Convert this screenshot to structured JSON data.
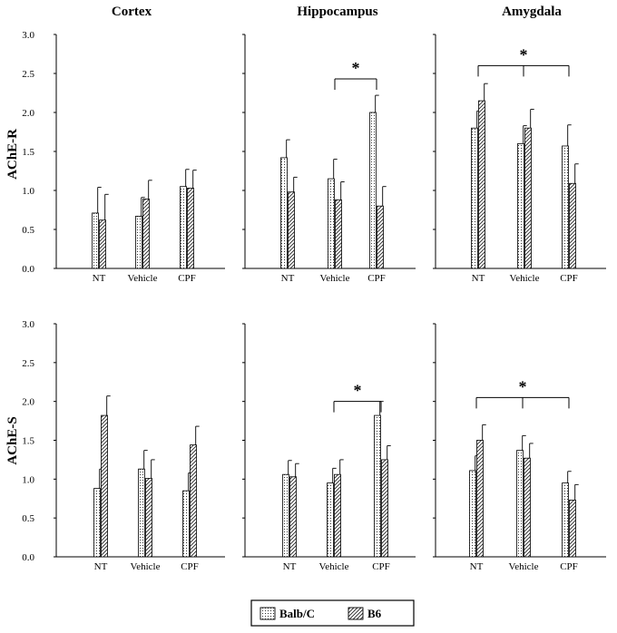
{
  "chart_data": {
    "type": "bar",
    "columns": [
      "Cortex",
      "Hippocampus",
      "Amygdala"
    ],
    "rows": [
      "AChE-R",
      "AChE-S"
    ],
    "categories": [
      "NT",
      "Vehicle",
      "CPF"
    ],
    "yticks": [
      "0.0",
      "0.5",
      "1.0",
      "1.5",
      "2.0",
      "2.5",
      "3.0"
    ],
    "ylim": [
      0,
      3
    ],
    "legend": {
      "placement": "bottom-center",
      "items": [
        {
          "name": "Balb/C",
          "pattern": "dots"
        },
        {
          "name": "B6",
          "pattern": "hatch"
        }
      ]
    },
    "significance_marker": "*",
    "panels": [
      {
        "id": "cortex-r",
        "region": "Cortex",
        "measure": "AChE-R",
        "series": [
          {
            "name": "Balb/C",
            "values": [
              0.71,
              0.67,
              1.05
            ],
            "errors": [
              0.33,
              0.24,
              0.22
            ]
          },
          {
            "name": "B6",
            "values": [
              0.62,
              0.89,
              1.03
            ],
            "errors": [
              0.33,
              0.24,
              0.23
            ]
          }
        ],
        "significance": null
      },
      {
        "id": "hippocampus-r",
        "region": "Hippocampus",
        "measure": "AChE-R",
        "series": [
          {
            "name": "Balb/C",
            "values": [
              1.42,
              1.15,
              2.0
            ],
            "errors": [
              0.23,
              0.25,
              0.22
            ]
          },
          {
            "name": "B6",
            "values": [
              0.98,
              0.88,
              0.8
            ],
            "errors": [
              0.19,
              0.23,
              0.25
            ]
          }
        ],
        "significance": {
          "from": 1,
          "to": 2,
          "y": 2.43
        }
      },
      {
        "id": "amygdala-r",
        "region": "Amygdala",
        "measure": "AChE-R",
        "series": [
          {
            "name": "Balb/C",
            "values": [
              1.8,
              1.6,
              1.57
            ],
            "errors": [
              0.22,
              0.23,
              0.27
            ]
          },
          {
            "name": "B6",
            "values": [
              2.15,
              1.8,
              1.09
            ],
            "errors": [
              0.22,
              0.24,
              0.25
            ]
          }
        ],
        "significance": {
          "from": 0,
          "to": 2,
          "y": 2.6,
          "center_tick": true
        }
      },
      {
        "id": "cortex-s",
        "region": "Cortex",
        "measure": "AChE-S",
        "series": [
          {
            "name": "Balb/C",
            "values": [
              0.88,
              1.13,
              0.85
            ],
            "errors": [
              0.25,
              0.24,
              0.23
            ]
          },
          {
            "name": "B6",
            "values": [
              1.82,
              1.01,
              1.44
            ],
            "errors": [
              0.25,
              0.24,
              0.24
            ]
          }
        ],
        "significance": null
      },
      {
        "id": "hippocampus-s",
        "region": "Hippocampus",
        "measure": "AChE-S",
        "series": [
          {
            "name": "Balb/C",
            "values": [
              1.06,
              0.95,
              1.82
            ],
            "errors": [
              0.18,
              0.19,
              0.18
            ]
          },
          {
            "name": "B6",
            "values": [
              1.03,
              1.06,
              1.25
            ],
            "errors": [
              0.17,
              0.19,
              0.18
            ]
          }
        ],
        "significance": {
          "from": 1,
          "to": 2,
          "y": 2.0
        }
      },
      {
        "id": "amygdala-s",
        "region": "Amygdala",
        "measure": "AChE-S",
        "series": [
          {
            "name": "Balb/C",
            "values": [
              1.11,
              1.37,
              0.95
            ],
            "errors": [
              0.19,
              0.19,
              0.15
            ]
          },
          {
            "name": "B6",
            "values": [
              1.5,
              1.27,
              0.73
            ],
            "errors": [
              0.2,
              0.19,
              0.2
            ]
          }
        ],
        "significance": {
          "from": 0,
          "to": 2,
          "y": 2.05,
          "center_tick": true
        }
      }
    ]
  }
}
